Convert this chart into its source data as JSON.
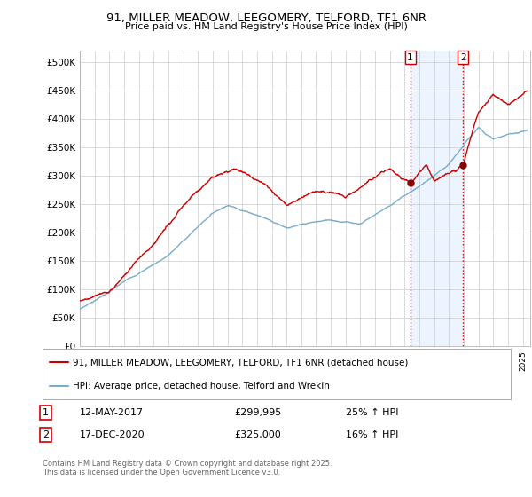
{
  "title_line1": "91, MILLER MEADOW, LEEGOMERY, TELFORD, TF1 6NR",
  "title_line2": "Price paid vs. HM Land Registry's House Price Index (HPI)",
  "ylim": [
    0,
    520000
  ],
  "yticks": [
    0,
    50000,
    100000,
    150000,
    200000,
    250000,
    300000,
    350000,
    400000,
    450000,
    500000
  ],
  "ytick_labels": [
    "£0",
    "£50K",
    "£100K",
    "£150K",
    "£200K",
    "£250K",
    "£300K",
    "£350K",
    "£400K",
    "£450K",
    "£500K"
  ],
  "red_line_color": "#cc0000",
  "blue_line_color": "#7aaccc",
  "vline_color": "#cc0000",
  "annotation1": {
    "num": "1",
    "date": "12-MAY-2017",
    "price": "£299,995",
    "hpi": "25% ↑ HPI"
  },
  "annotation2": {
    "num": "2",
    "date": "17-DEC-2020",
    "price": "£325,000",
    "hpi": "16% ↑ HPI"
  },
  "legend_line1": "91, MILLER MEADOW, LEEGOMERY, TELFORD, TF1 6NR (detached house)",
  "legend_line2": "HPI: Average price, detached house, Telford and Wrekin",
  "footer": "Contains HM Land Registry data © Crown copyright and database right 2025.\nThis data is licensed under the Open Government Licence v3.0.",
  "bg_color": "#ffffff",
  "grid_color": "#cccccc",
  "shade_color": "#ddeeff",
  "m1_year": 2017.37,
  "m2_year": 2020.96
}
